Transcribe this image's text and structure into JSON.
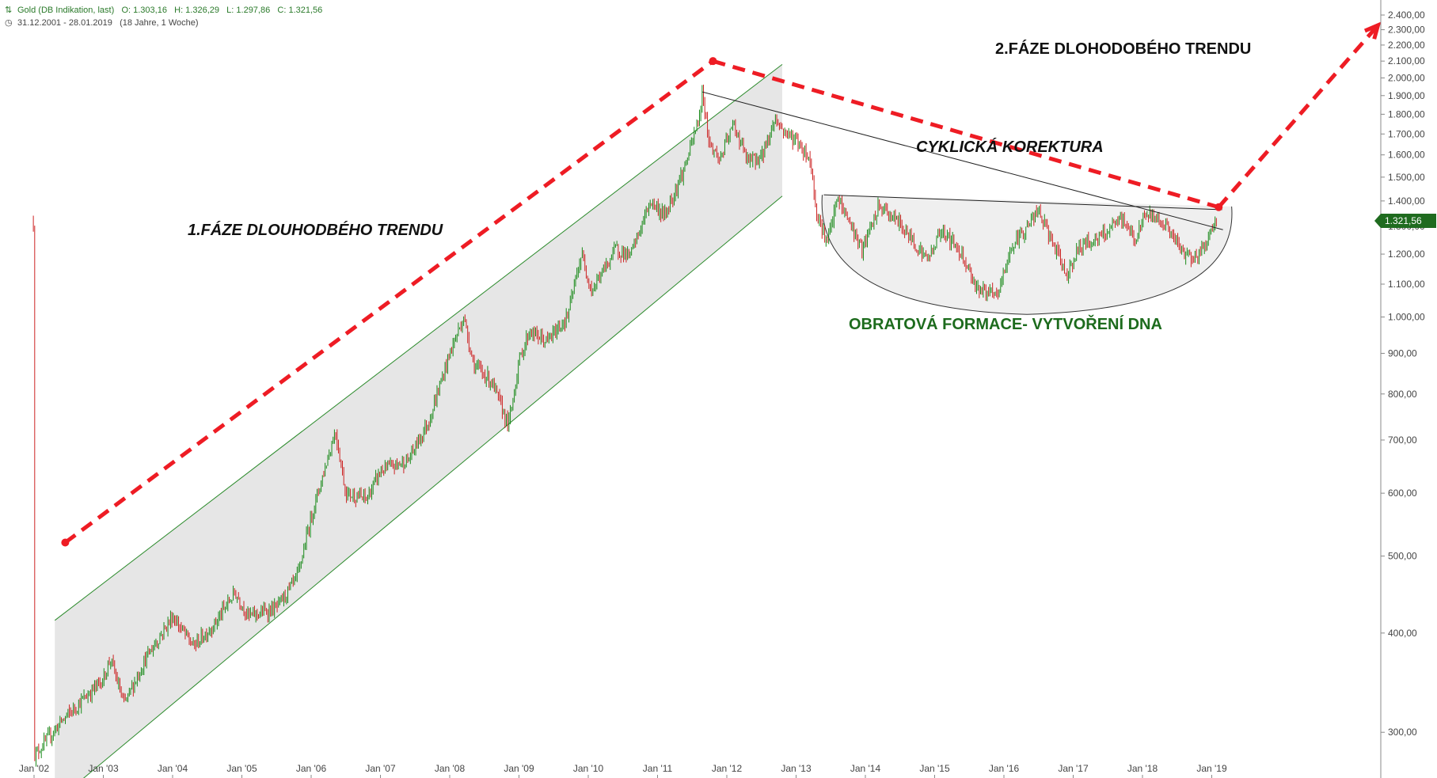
{
  "header": {
    "instrument": "Gold (DB Indikation, last)",
    "open": "O: 1.303,16",
    "high": "H: 1.326,29",
    "low": "L: 1.297,86",
    "close": "C: 1.321,56",
    "range": "31.12.2001 - 28.01.2019",
    "period": "(18 Jahre, 1 Woche)"
  },
  "last_price_label": "1.321,56",
  "annotations": {
    "phase1": "1.FÁZE DLOUHODBÉHO TRENDU",
    "phase2": "2.FÁZE DLOHODOBÉHO TRENDU",
    "correction": "CYKLICKÁ KOREKTURA",
    "reversal": "OBRATOVÁ FORMACE- VYTVOŘENÍ DNA"
  },
  "colors": {
    "up": "#1a8a1a",
    "down": "#cc2222",
    "channel_line": "#2a8a2a",
    "channel_fill": "#e6e6e6",
    "arrow": "#ee1c24",
    "last_badge": "#1f6b1f",
    "phase_green_text": "#1d6b1d"
  },
  "chart_data": {
    "type": "candlestick",
    "scale": "log",
    "ylim": [
      290,
      2450
    ],
    "y_ticks": [
      "300,00",
      "400,00",
      "500,00",
      "600,00",
      "700,00",
      "800,00",
      "900,00",
      "1.000,00",
      "1.100,00",
      "1.200,00",
      "1.300,00",
      "1.400,00",
      "1.500,00",
      "1.600,00",
      "1.700,00",
      "1.800,00",
      "1.900,00",
      "2.000,00",
      "2.100,00",
      "2.200,00",
      "2.300,00",
      "2.400,00"
    ],
    "y_tick_values": [
      300,
      400,
      500,
      600,
      700,
      800,
      900,
      1000,
      1100,
      1200,
      1300,
      1400,
      1500,
      1600,
      1700,
      1800,
      1900,
      2000,
      2100,
      2200,
      2300,
      2400
    ],
    "x_ticks": [
      "Jan '02",
      "Jan '03",
      "Jan '04",
      "Jan '05",
      "Jan '06",
      "Jan '07",
      "Jan '08",
      "Jan '09",
      "Jan '10",
      "Jan '11",
      "Jan '12",
      "Jan '13",
      "Jan '14",
      "Jan '15",
      "Jan '16",
      "Jan '17",
      "Jan '18",
      "Jan '19"
    ],
    "x_tick_years": [
      2002,
      2003,
      2004,
      2005,
      2006,
      2007,
      2008,
      2009,
      2010,
      2011,
      2012,
      2013,
      2014,
      2015,
      2016,
      2017,
      2018,
      2019
    ],
    "x_range": [
      2001.78,
      2021.5
    ],
    "price_path": [
      [
        2002.0,
        280
      ],
      [
        2002.4,
        310
      ],
      [
        2003.0,
        350
      ],
      [
        2003.1,
        372
      ],
      [
        2003.3,
        325
      ],
      [
        2003.6,
        370
      ],
      [
        2004.0,
        420
      ],
      [
        2004.3,
        385
      ],
      [
        2004.6,
        410
      ],
      [
        2004.9,
        450
      ],
      [
        2005.1,
        420
      ],
      [
        2005.5,
        430
      ],
      [
        2005.8,
        470
      ],
      [
        2006.0,
        560
      ],
      [
        2006.35,
        720
      ],
      [
        2006.5,
        600
      ],
      [
        2006.8,
        590
      ],
      [
        2007.0,
        640
      ],
      [
        2007.4,
        660
      ],
      [
        2007.7,
        740
      ],
      [
        2008.0,
        900
      ],
      [
        2008.2,
        1000
      ],
      [
        2008.35,
        870
      ],
      [
        2008.6,
        830
      ],
      [
        2008.85,
        730
      ],
      [
        2009.0,
        880
      ],
      [
        2009.15,
        960
      ],
      [
        2009.4,
        930
      ],
      [
        2009.7,
        1000
      ],
      [
        2009.9,
        1200
      ],
      [
        2010.05,
        1080
      ],
      [
        2010.4,
        1220
      ],
      [
        2010.6,
        1190
      ],
      [
        2010.9,
        1400
      ],
      [
        2011.1,
        1340
      ],
      [
        2011.4,
        1550
      ],
      [
        2011.6,
        1780
      ],
      [
        2011.65,
        1920
      ],
      [
        2011.75,
        1650
      ],
      [
        2011.9,
        1580
      ],
      [
        2012.1,
        1750
      ],
      [
        2012.3,
        1570
      ],
      [
        2012.5,
        1590
      ],
      [
        2012.7,
        1780
      ],
      [
        2012.8,
        1720
      ],
      [
        2013.0,
        1670
      ],
      [
        2013.2,
        1580
      ],
      [
        2013.3,
        1350
      ],
      [
        2013.45,
        1240
      ],
      [
        2013.6,
        1410
      ],
      [
        2013.8,
        1300
      ],
      [
        2013.95,
        1210
      ],
      [
        2014.2,
        1380
      ],
      [
        2014.5,
        1310
      ],
      [
        2014.9,
        1180
      ],
      [
        2015.1,
        1290
      ],
      [
        2015.4,
        1200
      ],
      [
        2015.6,
        1090
      ],
      [
        2015.9,
        1060
      ],
      [
        2016.1,
        1220
      ],
      [
        2016.5,
        1360
      ],
      [
        2016.9,
        1130
      ],
      [
        2017.1,
        1230
      ],
      [
        2017.4,
        1260
      ],
      [
        2017.7,
        1330
      ],
      [
        2017.9,
        1250
      ],
      [
        2018.05,
        1350
      ],
      [
        2018.3,
        1320
      ],
      [
        2018.6,
        1200
      ],
      [
        2018.8,
        1190
      ],
      [
        2019.07,
        1321.56
      ]
    ],
    "channel": {
      "upper": [
        [
          2002.3,
          415
        ],
        [
          2012.8,
          2080
        ]
      ],
      "lower": [
        [
          2002.3,
          245
        ],
        [
          2012.8,
          1420
        ]
      ]
    },
    "downtrend_line": [
      [
        2011.65,
        1920
      ],
      [
        2019.07,
        1330
      ]
    ],
    "neckline": [
      [
        2013.4,
        1425
      ],
      [
        2019.15,
        1365
      ]
    ],
    "phase1_arrow": [
      [
        2002.45,
        520
      ],
      [
        2011.8,
        2100
      ]
    ],
    "correction_arrow": [
      [
        2011.8,
        2100
      ],
      [
        2019.1,
        1375
      ]
    ],
    "phase2_arrow": [
      [
        2019.1,
        1375
      ],
      [
        2021.4,
        2330
      ]
    ],
    "arrow_color": "red"
  }
}
